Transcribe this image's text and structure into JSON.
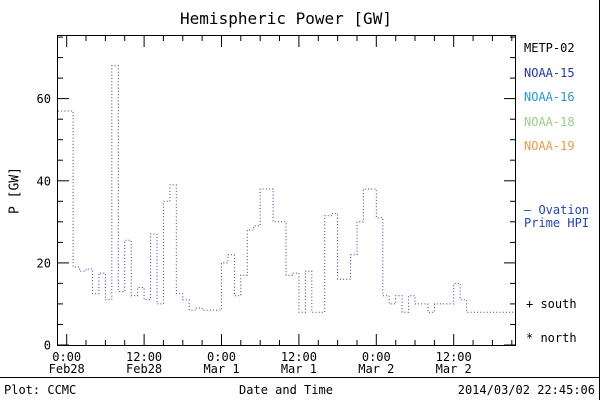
{
  "legend": {
    "satellites": [
      {
        "label": "METP-02",
        "color": "#000000"
      },
      {
        "label": "NOAA-15",
        "color": "#2233bb"
      },
      {
        "label": "NOAA-16",
        "color": "#2299cc"
      },
      {
        "label": "NOAA-18",
        "color": "#99cc88"
      },
      {
        "label": "NOAA-19",
        "color": "#ee9944"
      }
    ],
    "ovation": {
      "line1": "– Ovation",
      "line2": "Prime HPI",
      "color": "#2244bb"
    },
    "south_marker": "+ south",
    "north_marker": "* north"
  },
  "footer": {
    "left": "Plot: CCMC",
    "right": "2014/03/02 22:45:06"
  },
  "chart_data": {
    "type": "line",
    "title": "Hemispheric Power [GW]",
    "xlabel": "Date and Time",
    "ylabel": "P [GW]",
    "line_color": "#3333bb",
    "line_style": "dotted-step",
    "grid": false,
    "legend_position": "right",
    "xlim_hours": [
      -1.5,
      69.5
    ],
    "ylim": [
      0,
      75.5
    ],
    "yticks": [
      0,
      20,
      40,
      60
    ],
    "xticks": [
      {
        "hour": 0,
        "label": [
          "0:00",
          "Feb28"
        ]
      },
      {
        "hour": 12,
        "label": [
          "12:00",
          "Feb28"
        ]
      },
      {
        "hour": 24,
        "label": [
          "0:00",
          "Mar 1"
        ]
      },
      {
        "hour": 36,
        "label": [
          "12:00",
          "Mar 1"
        ]
      },
      {
        "hour": 48,
        "label": [
          "0:00",
          "Mar 2"
        ]
      },
      {
        "hour": 60,
        "label": [
          "12:00",
          "Mar 2"
        ]
      }
    ],
    "series": [
      {
        "name": "Ovation Prime HPI",
        "start_hour": 0,
        "step_hours": 1,
        "values": [
          57,
          19,
          18,
          18.5,
          12.5,
          17.5,
          11,
          68,
          13,
          25.5,
          12,
          14,
          11,
          27,
          10,
          35,
          39,
          12.5,
          11,
          8.5,
          9,
          8.5,
          8.5,
          8.5,
          20,
          22,
          12,
          17,
          28,
          29,
          38,
          38,
          30,
          30,
          17,
          17.5,
          8,
          18,
          8,
          8,
          31.5,
          32,
          16,
          16,
          22,
          30,
          38,
          38,
          31,
          12,
          10,
          12,
          8,
          12,
          10,
          10,
          8,
          10,
          10,
          10,
          15,
          11,
          8,
          8,
          8,
          8,
          8,
          8,
          8,
          8,
          8
        ]
      }
    ]
  }
}
